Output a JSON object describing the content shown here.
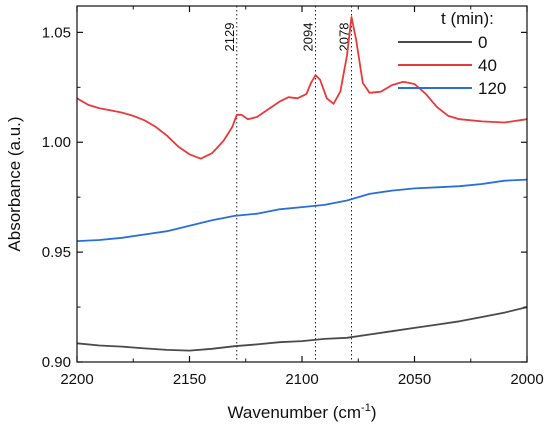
{
  "chart_data": {
    "type": "line",
    "title": "",
    "xlabel": "Wavenumber (cm",
    "xlabel_sup": "-1",
    "xlabel_suffix": ")",
    "ylabel": "Absorbance (a.u.)",
    "xlim": [
      2200,
      2000
    ],
    "ylim": [
      0.9,
      1.062
    ],
    "x_reversed": true,
    "x_ticks": [
      2200,
      2150,
      2100,
      2050,
      2000
    ],
    "x_tick_labels": [
      "2200",
      "2150",
      "2100",
      "2050",
      "2000"
    ],
    "y_ticks": [
      0.9,
      0.95,
      1.0,
      1.05
    ],
    "y_tick_labels": [
      "0.90",
      "0.95",
      "1.00",
      "1.05"
    ],
    "grid": false,
    "legend": {
      "title": "t (min):",
      "position": "top-right",
      "entries": [
        "0",
        "40",
        "120"
      ]
    },
    "annotations": [
      {
        "x": 2129,
        "label": "2129"
      },
      {
        "x": 2094,
        "label": "2094"
      },
      {
        "x": 2078,
        "label": "2078"
      }
    ],
    "series": [
      {
        "name": "0",
        "color": "#4a4a4a",
        "points": [
          [
            2200,
            0.9085
          ],
          [
            2190,
            0.9075
          ],
          [
            2180,
            0.907
          ],
          [
            2170,
            0.9062
          ],
          [
            2160,
            0.9055
          ],
          [
            2150,
            0.9052
          ],
          [
            2140,
            0.906
          ],
          [
            2130,
            0.9072
          ],
          [
            2120,
            0.908
          ],
          [
            2110,
            0.909
          ],
          [
            2100,
            0.9095
          ],
          [
            2090,
            0.9105
          ],
          [
            2080,
            0.911
          ],
          [
            2070,
            0.9125
          ],
          [
            2060,
            0.914
          ],
          [
            2050,
            0.9155
          ],
          [
            2040,
            0.917
          ],
          [
            2030,
            0.9185
          ],
          [
            2020,
            0.9205
          ],
          [
            2010,
            0.9225
          ],
          [
            2000,
            0.925
          ]
        ]
      },
      {
        "name": "40",
        "color": "#e8393b",
        "points": [
          [
            2200,
            1.02
          ],
          [
            2195,
            1.017
          ],
          [
            2190,
            1.0155
          ],
          [
            2185,
            1.0145
          ],
          [
            2180,
            1.0135
          ],
          [
            2175,
            1.012
          ],
          [
            2170,
            1.01
          ],
          [
            2165,
            1.007
          ],
          [
            2160,
            1.003
          ],
          [
            2155,
            0.998
          ],
          [
            2150,
            0.9945
          ],
          [
            2145,
            0.9925
          ],
          [
            2140,
            0.995
          ],
          [
            2135,
            1.0005
          ],
          [
            2131,
            1.007
          ],
          [
            2129,
            1.0125
          ],
          [
            2127,
            1.0125
          ],
          [
            2124,
            1.0105
          ],
          [
            2120,
            1.0115
          ],
          [
            2115,
            1.015
          ],
          [
            2110,
            1.0185
          ],
          [
            2106,
            1.0205
          ],
          [
            2102,
            1.02
          ],
          [
            2098,
            1.022
          ],
          [
            2096,
            1.027
          ],
          [
            2094,
            1.0305
          ],
          [
            2092,
            1.0285
          ],
          [
            2089,
            1.02
          ],
          [
            2086,
            1.0175
          ],
          [
            2083,
            1.023
          ],
          [
            2080,
            1.0395
          ],
          [
            2078,
            1.057
          ],
          [
            2076,
            1.047
          ],
          [
            2073,
            1.027
          ],
          [
            2070,
            1.0225
          ],
          [
            2065,
            1.023
          ],
          [
            2060,
            1.026
          ],
          [
            2055,
            1.0275
          ],
          [
            2050,
            1.0265
          ],
          [
            2045,
            1.022
          ],
          [
            2040,
            1.016
          ],
          [
            2035,
            1.012
          ],
          [
            2030,
            1.0105
          ],
          [
            2020,
            1.0095
          ],
          [
            2010,
            1.009
          ],
          [
            2000,
            1.0105
          ]
        ]
      },
      {
        "name": "120",
        "color": "#2a6fd6",
        "points": [
          [
            2200,
            0.955
          ],
          [
            2190,
            0.9555
          ],
          [
            2180,
            0.9565
          ],
          [
            2170,
            0.958
          ],
          [
            2160,
            0.9595
          ],
          [
            2150,
            0.962
          ],
          [
            2140,
            0.9645
          ],
          [
            2130,
            0.9665
          ],
          [
            2120,
            0.9675
          ],
          [
            2110,
            0.9695
          ],
          [
            2100,
            0.9705
          ],
          [
            2090,
            0.9715
          ],
          [
            2080,
            0.9735
          ],
          [
            2070,
            0.9765
          ],
          [
            2060,
            0.978
          ],
          [
            2050,
            0.979
          ],
          [
            2040,
            0.9795
          ],
          [
            2030,
            0.98
          ],
          [
            2020,
            0.981
          ],
          [
            2010,
            0.9825
          ],
          [
            2000,
            0.983
          ]
        ]
      }
    ]
  }
}
